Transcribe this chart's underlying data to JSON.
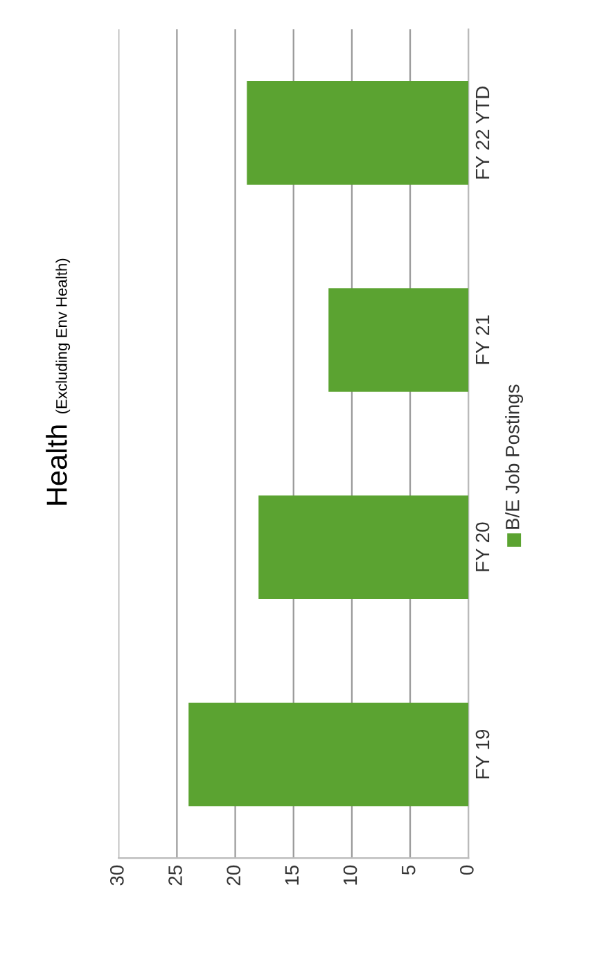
{
  "chart_data": {
    "type": "bar",
    "orientation": "horizontal",
    "title": "Health",
    "subtitle": "(Excluding Env Health)",
    "categories": [
      "FY 22 YTD",
      "FY 21",
      "FY 20",
      "FY 19"
    ],
    "series": [
      {
        "name": "B/E Job Postings",
        "color": "#5ba331",
        "values": [
          19,
          12,
          18,
          24
        ]
      }
    ],
    "xlim": [
      30,
      0
    ],
    "xticks": [
      30,
      25,
      20,
      15,
      10,
      5,
      0
    ],
    "grid": "x",
    "legend": "right"
  }
}
